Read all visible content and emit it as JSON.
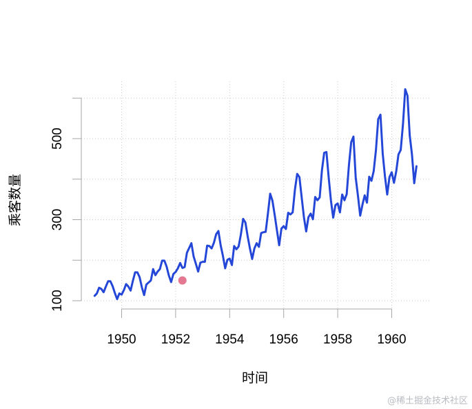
{
  "chart_data": {
    "type": "line",
    "title": "",
    "xlabel": "时间",
    "ylabel": "乘客数量",
    "xlim": [
      1948.5,
      1961.5
    ],
    "ylim": [
      100,
      622
    ],
    "x_ticks": [
      1950,
      1952,
      1954,
      1956,
      1958,
      1960
    ],
    "x_tick_labels": [
      "1950",
      "1952",
      "1954",
      "1956",
      "1958",
      "1960"
    ],
    "y_ticks": [
      100,
      200,
      300,
      400,
      500,
      600
    ],
    "y_tick_labels": [
      "100",
      "",
      "300",
      "",
      "500",
      ""
    ],
    "grid": true,
    "line_color": "#2447d8",
    "highlight_color": "#e0607e",
    "series": [
      {
        "x_start": 1949.0,
        "step": 0.08333,
        "values": [
          112,
          118,
          132,
          129,
          121,
          135,
          148,
          148,
          136,
          119,
          104,
          118,
          115,
          126,
          141,
          135,
          125,
          149,
          170,
          170,
          158,
          133,
          114,
          140,
          145,
          150,
          178,
          163,
          172,
          178,
          199,
          199,
          184,
          162,
          146,
          166,
          171,
          180,
          193,
          181,
          183,
          218,
          230,
          242,
          209,
          191,
          172,
          194,
          196,
          196,
          236,
          235,
          229,
          243,
          264,
          272,
          237,
          211,
          180,
          201,
          204,
          188,
          235,
          227,
          234,
          264,
          302,
          293,
          259,
          229,
          203,
          229,
          242,
          233,
          267,
          269,
          270,
          315,
          364,
          347,
          312,
          274,
          237,
          278,
          284,
          277,
          317,
          313,
          318,
          374,
          413,
          405,
          355,
          306,
          271,
          306,
          315,
          301,
          356,
          348,
          355,
          422,
          465,
          467,
          404,
          347,
          305,
          336,
          340,
          318,
          362,
          348,
          363,
          435,
          491,
          505,
          404,
          359,
          310,
          337,
          360,
          342,
          406,
          396,
          420,
          472,
          548,
          559,
          463,
          407,
          362,
          405,
          417,
          391,
          419,
          461,
          472,
          535,
          622,
          606,
          508,
          461,
          390,
          432
        ]
      }
    ],
    "highlight_point": {
      "x": 1952.25,
      "y": 150
    }
  },
  "watermark": "@稀土掘金技术社区"
}
